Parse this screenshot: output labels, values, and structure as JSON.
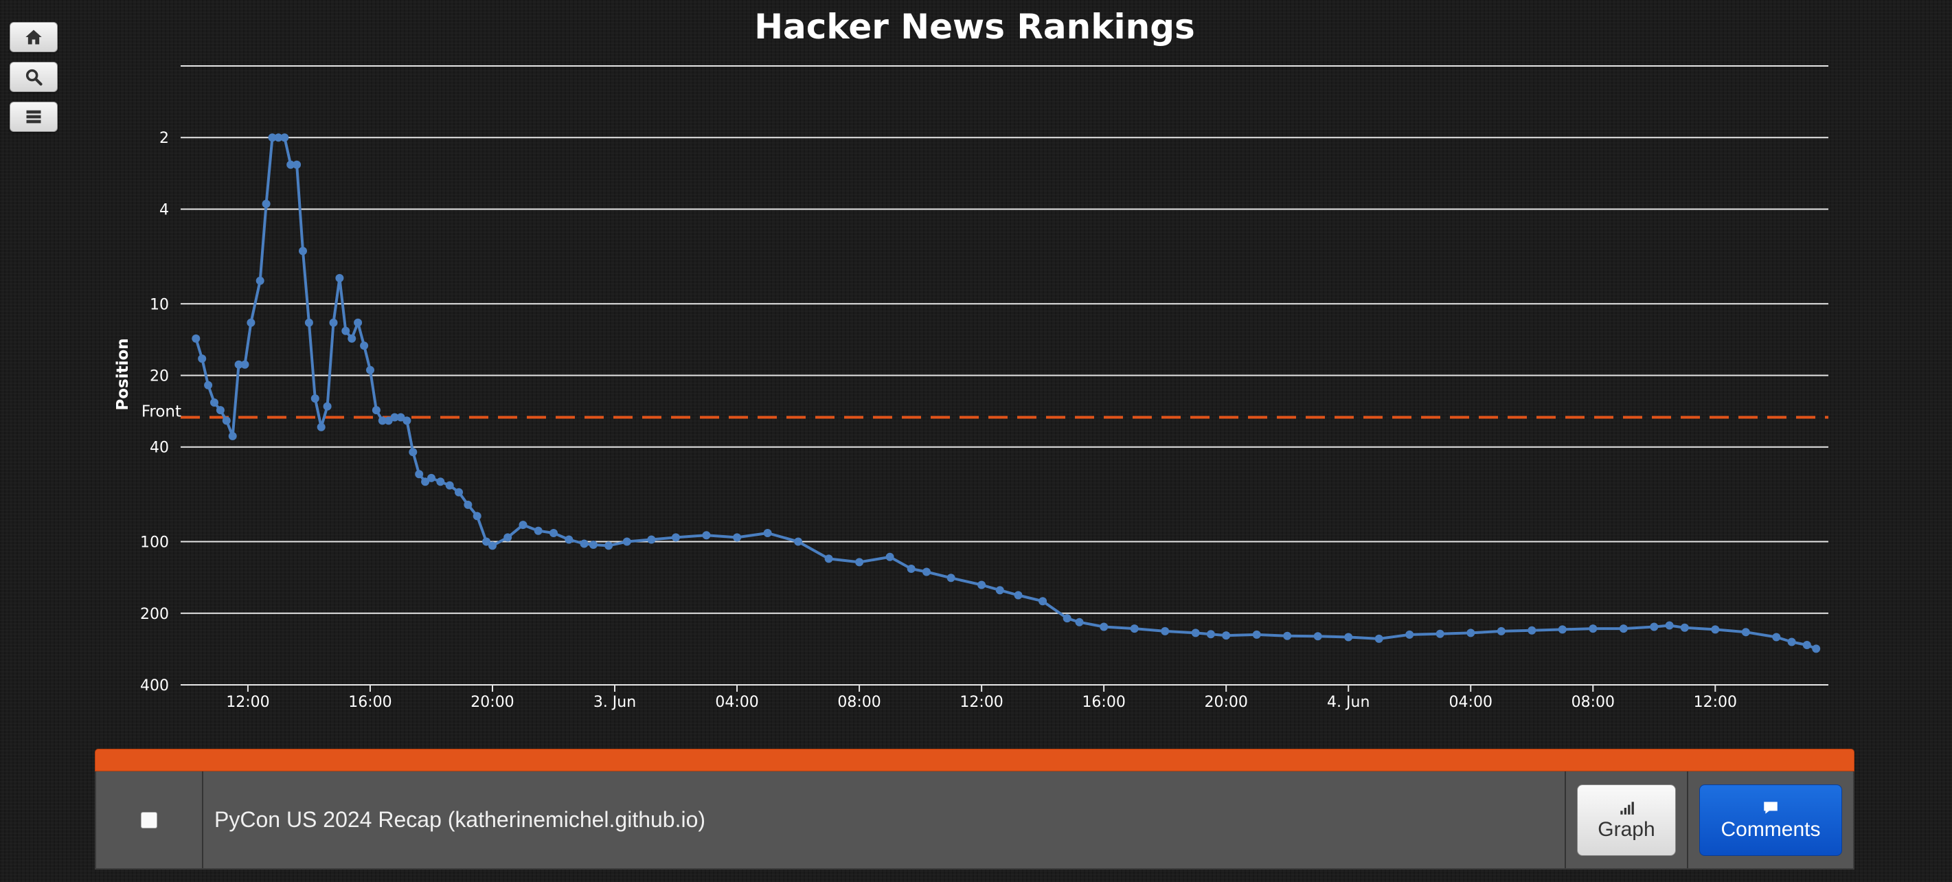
{
  "sidebar": {
    "buttons": [
      {
        "icon": "home-icon"
      },
      {
        "icon": "search-icon"
      },
      {
        "icon": "list-icon"
      }
    ]
  },
  "colors": {
    "series": "#4a7fc1",
    "front_line": "#e2541a",
    "bar_accent": "#e2541a",
    "comments_button": "#0a56d0"
  },
  "chart_data": {
    "type": "line",
    "title": "Hacker News Rankings",
    "ylabel": "Position",
    "y_scale": "log",
    "y_reversed": true,
    "ylim": [
      1,
      400
    ],
    "y_ticks": [
      2,
      4,
      10,
      20,
      40,
      100,
      200,
      400
    ],
    "x_ticks": [
      "12:00",
      "16:00",
      "20:00",
      "3. Jun",
      "04:00",
      "08:00",
      "12:00",
      "16:00",
      "20:00",
      "4. Jun",
      "04:00",
      "08:00",
      "12:00"
    ],
    "x_tick_hours": [
      12,
      16,
      20,
      24,
      28,
      32,
      36,
      40,
      44,
      48,
      52,
      56,
      60
    ],
    "xlim": [
      9.8,
      63.7
    ],
    "plot_line": {
      "label": "Front",
      "value": 30,
      "style": "dashed"
    },
    "grid": true,
    "series": [
      {
        "x": [
          10.3,
          10.5,
          10.7,
          10.9,
          11.1,
          11.3,
          11.5,
          11.7,
          11.9,
          12.1,
          12.4,
          12.6,
          12.8,
          13.0,
          13.2,
          13.4,
          13.6,
          13.8,
          14.0,
          14.2,
          14.4,
          14.6,
          14.8,
          15.0,
          15.2,
          15.4,
          15.6,
          15.8,
          16.0,
          16.2,
          16.4,
          16.6,
          16.8,
          17.0,
          17.2,
          17.4,
          17.6,
          17.8,
          18.0,
          18.3,
          18.6,
          18.9,
          19.2,
          19.5,
          19.8,
          20.0,
          20.5,
          21.0,
          21.5,
          22.0,
          22.5,
          23.0,
          23.3,
          23.8,
          24.4,
          25.2,
          26.0,
          27.0,
          28.0,
          29.0,
          30.0,
          31.0,
          32.0,
          33.0,
          33.7,
          34.2,
          35.0,
          36.0,
          36.6,
          37.2,
          38.0,
          38.8,
          39.2,
          40.0,
          41.0,
          42.0,
          43.0,
          43.5,
          44.0,
          45.0,
          46.0,
          47.0,
          48.0,
          49.0,
          50.0,
          51.0,
          52.0,
          53.0,
          54.0,
          55.0,
          56.0,
          57.0,
          58.0,
          58.5,
          59.0,
          60.0,
          61.0,
          62.0,
          62.5,
          63.0,
          63.3
        ],
        "y": [
          14,
          17,
          22,
          26,
          28,
          31,
          36,
          18,
          18,
          12,
          8,
          3.8,
          2,
          2,
          2,
          2.6,
          2.6,
          6,
          12,
          25,
          33,
          27,
          12,
          7.8,
          13,
          14,
          12,
          15,
          19,
          28,
          31,
          31,
          30,
          30,
          31,
          42,
          52,
          56,
          54,
          56,
          58,
          62,
          70,
          78,
          100,
          104,
          96,
          85,
          90,
          92,
          98,
          102,
          103,
          104,
          100,
          98,
          96,
          94,
          96,
          92,
          100,
          118,
          122,
          116,
          130,
          134,
          142,
          152,
          160,
          168,
          178,
          210,
          218,
          228,
          232,
          238,
          242,
          245,
          248,
          246,
          249,
          250,
          252,
          256,
          246,
          244,
          242,
          238,
          236,
          234,
          232,
          232,
          228,
          225,
          230,
          234,
          240,
          252,
          264,
          272,
          282
        ]
      }
    ]
  },
  "item": {
    "title": "PyCon US 2024 Recap (katherinemichel.github.io)",
    "graph_label": "Graph",
    "comments_label": "Comments"
  }
}
